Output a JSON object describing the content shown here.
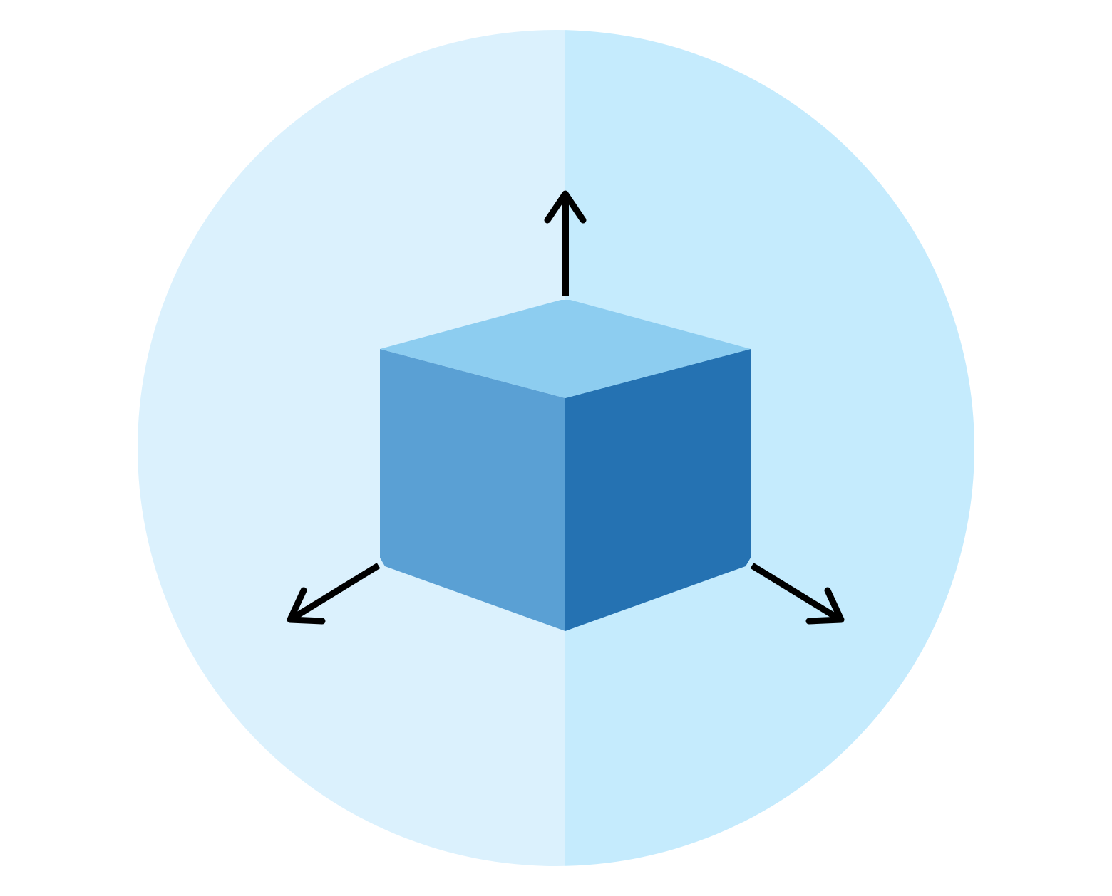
{
  "illustration": {
    "subject": "3d-cube-with-axes-icon",
    "colors": {
      "page_background": "#ffffff",
      "circle_left": "#dbf1fd",
      "circle_right": "#c5ebfd",
      "cube_top": "#8dcdf0",
      "cube_left": "#5aa0d4",
      "cube_right": "#2572b2",
      "arrow": "#000000"
    },
    "arrows": [
      {
        "name": "up-arrow-icon",
        "direction": "up"
      },
      {
        "name": "left-arrow-icon",
        "direction": "down-left"
      },
      {
        "name": "right-arrow-icon",
        "direction": "down-right"
      }
    ]
  }
}
